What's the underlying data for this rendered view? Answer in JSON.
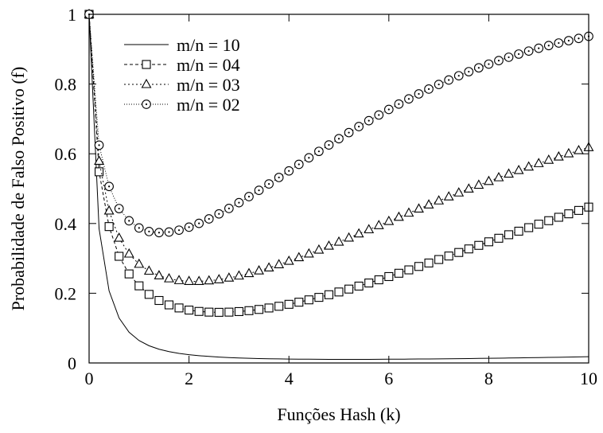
{
  "chart_data": {
    "type": "line",
    "xlabel": "Funções Hash (k)",
    "ylabel": "Probabilidade de Falso Positivo (f)",
    "xlim": [
      0,
      10
    ],
    "ylim": [
      0,
      1
    ],
    "x_ticks": [
      0,
      2,
      4,
      6,
      8,
      10
    ],
    "y_ticks": [
      0,
      0.2,
      0.4,
      0.6,
      0.8,
      1
    ],
    "x_tick_labels": [
      "0",
      "2",
      "4",
      "6",
      "8",
      "10"
    ],
    "y_tick_labels": [
      "0",
      "0.2",
      "0.4",
      "0.6",
      "0.8",
      "1"
    ],
    "grid": false,
    "legend_position": "top-left",
    "x": [
      0,
      0.2,
      0.4,
      0.6,
      0.8,
      1.0,
      1.2,
      1.4,
      1.6,
      1.8,
      2.0,
      2.2,
      2.4,
      2.6,
      2.8,
      3.0,
      3.2,
      3.4,
      3.6,
      3.8,
      4.0,
      4.2,
      4.4,
      4.6,
      4.8,
      5.0,
      5.2,
      5.4,
      5.6,
      5.8,
      6.0,
      6.2,
      6.4,
      6.6,
      6.8,
      7.0,
      7.2,
      7.4,
      7.6,
      7.8,
      8.0,
      8.2,
      8.4,
      8.6,
      8.8,
      9.0,
      9.2,
      9.4,
      9.6,
      9.8,
      10.0
    ],
    "series": [
      {
        "name": "m/n = 10",
        "marker": "none",
        "values": [
          1.0,
          0.3847,
          0.2068,
          0.1289,
          0.0881,
          0.0643,
          0.0494,
          0.0394,
          0.0325,
          0.0275,
          0.0237,
          0.0209,
          0.0187,
          0.0169,
          0.0155,
          0.0144,
          0.0134,
          0.0127,
          0.0121,
          0.0116,
          0.0112,
          0.0109,
          0.0107,
          0.0105,
          0.0104,
          0.0104,
          0.0103,
          0.0104,
          0.0104,
          0.0105,
          0.0107,
          0.0109,
          0.011,
          0.0113,
          0.0115,
          0.0118,
          0.0121,
          0.0124,
          0.0127,
          0.013,
          0.0134,
          0.0138,
          0.0142,
          0.0146,
          0.015,
          0.0155,
          0.0159,
          0.0164,
          0.0169,
          0.0174,
          0.0179
        ]
      },
      {
        "name": "m/n = 04",
        "marker": "square",
        "values": [
          1.0,
          0.5483,
          0.3912,
          0.3059,
          0.2554,
          0.2212,
          0.1967,
          0.1792,
          0.1666,
          0.1578,
          0.1517,
          0.1478,
          0.1458,
          0.1452,
          0.1458,
          0.1474,
          0.15,
          0.1535,
          0.1577,
          0.1626,
          0.1682,
          0.1743,
          0.181,
          0.1881,
          0.1957,
          0.2036,
          0.2119,
          0.2205,
          0.2294,
          0.2385,
          0.2478,
          0.2573,
          0.267,
          0.2768,
          0.2867,
          0.2967,
          0.3068,
          0.3169,
          0.3271,
          0.3373,
          0.3475,
          0.3577,
          0.3678,
          0.378,
          0.3881,
          0.3981,
          0.4081,
          0.4179,
          0.4278,
          0.4375,
          0.4471
        ]
      },
      {
        "name": "m/n = 03",
        "marker": "triangle",
        "values": [
          1.0,
          0.5789,
          0.4362,
          0.3582,
          0.3128,
          0.2834,
          0.2637,
          0.2504,
          0.2417,
          0.2366,
          0.2342,
          0.2341,
          0.2358,
          0.2391,
          0.2438,
          0.2497,
          0.2566,
          0.2644,
          0.2729,
          0.2822,
          0.292,
          0.3023,
          0.313,
          0.3241,
          0.3354,
          0.347,
          0.3587,
          0.3705,
          0.3824,
          0.3943,
          0.4063,
          0.4182,
          0.4301,
          0.4419,
          0.4536,
          0.4652,
          0.4767,
          0.488,
          0.4992,
          0.5102,
          0.521,
          0.5317,
          0.5421,
          0.5523,
          0.5624,
          0.5722,
          0.5818,
          0.5912,
          0.6004,
          0.6094,
          0.6181
        ]
      },
      {
        "name": "m/n = 02",
        "marker": "circle",
        "values": [
          1.0,
          0.6248,
          0.5062,
          0.4428,
          0.4078,
          0.3873,
          0.3771,
          0.3738,
          0.3755,
          0.3809,
          0.3895,
          0.4004,
          0.4132,
          0.4276,
          0.4432,
          0.4598,
          0.4772,
          0.4951,
          0.5135,
          0.5321,
          0.5509,
          0.5697,
          0.5884,
          0.6069,
          0.6252,
          0.6432,
          0.6608,
          0.6781,
          0.6949,
          0.7113,
          0.7272,
          0.7425,
          0.7574,
          0.7718,
          0.7856,
          0.7989,
          0.8116,
          0.8238,
          0.8355,
          0.8466,
          0.8572,
          0.8673,
          0.8769,
          0.886,
          0.8946,
          0.9027,
          0.9104,
          0.9177,
          0.9245,
          0.931,
          0.937
        ]
      }
    ]
  }
}
